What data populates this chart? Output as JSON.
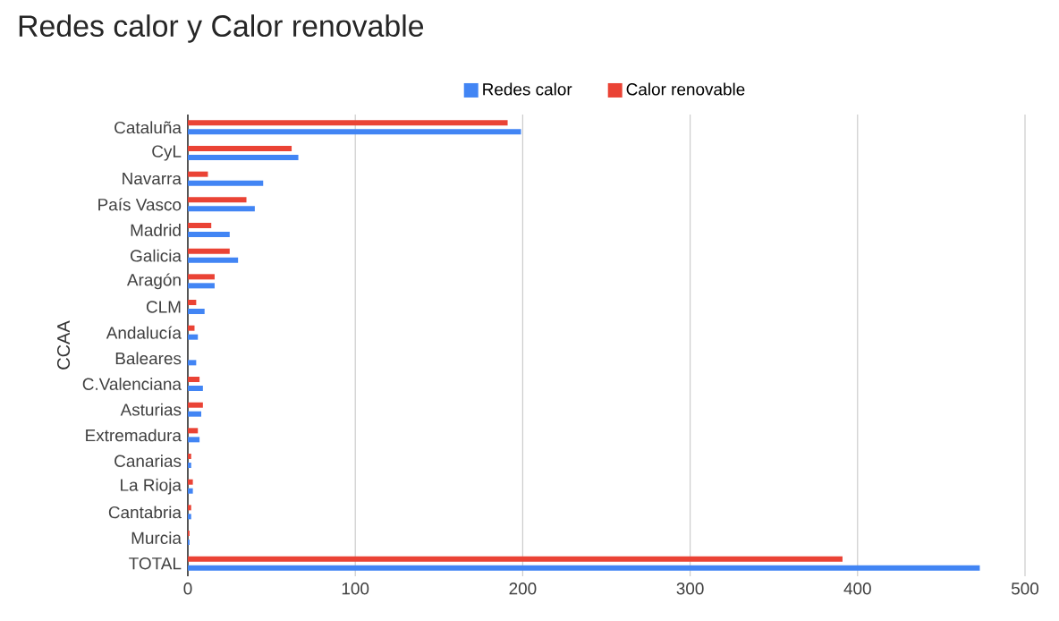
{
  "chart_data": {
    "type": "bar",
    "orientation": "horizontal",
    "title": "Redes calor y Calor renovable",
    "ylabel": "CCAA",
    "categories": [
      "Cataluña",
      "CyL",
      "Navarra",
      "País Vasco",
      "Madrid",
      "Galicia",
      "Aragón",
      "CLM",
      "Andalucía",
      "Baleares",
      "C.Valenciana",
      "Asturias",
      "Extremadura",
      "Canarias",
      "La Rioja",
      "Cantabria",
      "Murcia",
      "TOTAL"
    ],
    "series": [
      {
        "name": "Redes calor",
        "color": "#4285f4",
        "values": [
          199,
          66,
          45,
          40,
          25,
          30,
          16,
          10,
          6,
          5,
          9,
          8,
          7,
          2,
          3,
          2,
          1,
          473
        ]
      },
      {
        "name": "Calor renovable",
        "color": "#ea4335",
        "values": [
          191,
          62,
          12,
          35,
          14,
          25,
          16,
          5,
          4,
          0,
          7,
          9,
          6,
          2,
          3,
          2,
          1,
          391
        ]
      }
    ],
    "xlim": [
      0,
      500
    ],
    "xticks": [
      0,
      100,
      200,
      300,
      400,
      500
    ],
    "grid": "x",
    "legend": "top"
  }
}
